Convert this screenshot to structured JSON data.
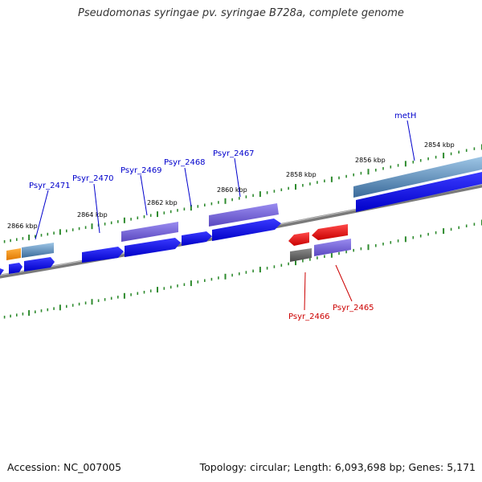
{
  "title": "Pseudomonas syringae pv. syringae B728a, complete genome",
  "footer": {
    "accession": "Accession: NC_007005",
    "summary": "Topology: circular; Length: 6,093,698 bp; Genes: 5,171"
  },
  "kbp_labels": [
    "2866 kbp",
    "2864 kbp",
    "2862 kbp",
    "2860 kbp",
    "2858 kbp",
    "2856 kbp",
    "2854 kbp"
  ],
  "gene_labels": {
    "forward": [
      "Psyr_2471",
      "Psyr_2470",
      "Psyr_2469",
      "Psyr_2468",
      "Psyr_2467",
      "metH"
    ],
    "reverse": [
      "Psyr_2466",
      "Psyr_2465"
    ]
  },
  "colors": {
    "backbone": "#7a7a7a",
    "cds": "#0000ee",
    "purple_feature": "#7b68d8",
    "steel_feature": "#4a7fb0",
    "orange_feature": "#f08c00",
    "red_feature": "#ee0000",
    "gray_feature": "#666666",
    "ticks": "#2e8b2e",
    "label_forward": "#0000cc",
    "label_reverse": "#cc0000"
  }
}
